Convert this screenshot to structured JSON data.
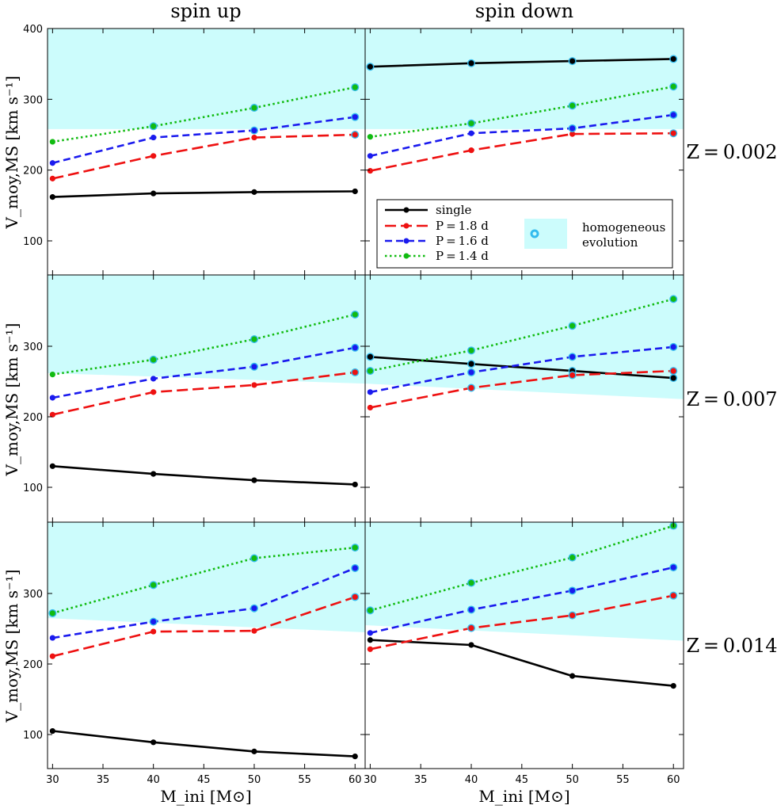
{
  "figure": {
    "col_titles": [
      "spin up",
      "spin down"
    ],
    "row_labels": [
      "Z = 0.002",
      "Z = 0.007",
      "Z = 0.014"
    ],
    "xlabel": "M_ini [M⊙]",
    "ylabel": "V_moy,MS [km s⁻¹]"
  },
  "legend": {
    "entries": [
      "single",
      "P = 1.8 d",
      "P = 1.6 d",
      "P = 1.4 d"
    ],
    "homogeneous": [
      "homogeneous",
      "evolution"
    ]
  },
  "colors": {
    "single": "#000000",
    "p18": "#ee1111",
    "p16": "#1a1aee",
    "p14": "#11bb11",
    "homogeneous_region": "#ccfcfc",
    "homogeneous_marker": "#33bbee"
  },
  "chart_data": {
    "type": "line",
    "x": [
      30,
      40,
      50,
      60
    ],
    "xticks": [
      30,
      35,
      40,
      45,
      50,
      55,
      60
    ],
    "xlim": [
      29.5,
      61
    ],
    "ylim_top_row": [
      50,
      400
    ],
    "ylim_other_rows": [
      50,
      400
    ],
    "yticks_top_row": [
      100,
      200,
      300,
      400
    ],
    "yticks_other_rows": [
      100,
      200,
      300
    ],
    "panels": [
      {
        "row": 0,
        "col": 0,
        "homogeneous_threshold": [
          258,
          258
        ],
        "series": [
          {
            "name": "single",
            "values": [
              162,
              167,
              169,
              170
            ],
            "homogeneous": [
              false,
              false,
              false,
              false
            ]
          },
          {
            "name": "P = 1.8 d",
            "values": [
              188,
              220,
              246,
              250
            ],
            "homogeneous": [
              false,
              false,
              false,
              true
            ]
          },
          {
            "name": "P = 1.6 d",
            "values": [
              210,
              246,
              256,
              275
            ],
            "homogeneous": [
              false,
              false,
              true,
              true
            ]
          },
          {
            "name": "P = 1.4 d",
            "values": [
              240,
              262,
              288,
              317
            ],
            "homogeneous": [
              false,
              true,
              true,
              true
            ]
          }
        ]
      },
      {
        "row": 0,
        "col": 1,
        "homogeneous_threshold": [
          258,
          258
        ],
        "series": [
          {
            "name": "single",
            "values": [
              346,
              351,
              354,
              357
            ],
            "homogeneous": [
              true,
              true,
              true,
              true
            ]
          },
          {
            "name": "P = 1.8 d",
            "values": [
              199,
              228,
              251,
              252
            ],
            "homogeneous": [
              false,
              false,
              false,
              true
            ]
          },
          {
            "name": "P = 1.6 d",
            "values": [
              220,
              252,
              259,
              278
            ],
            "homogeneous": [
              false,
              false,
              true,
              true
            ]
          },
          {
            "name": "P = 1.4 d",
            "values": [
              247,
              266,
              291,
              318
            ],
            "homogeneous": [
              false,
              true,
              true,
              true
            ]
          }
        ]
      },
      {
        "row": 1,
        "col": 0,
        "homogeneous_threshold": [
          262,
          247
        ],
        "series": [
          {
            "name": "single",
            "values": [
              130,
              119,
              110,
              104
            ],
            "homogeneous": [
              false,
              false,
              false,
              false
            ]
          },
          {
            "name": "P = 1.8 d",
            "values": [
              203,
              235,
              245,
              263
            ],
            "homogeneous": [
              false,
              false,
              false,
              true
            ]
          },
          {
            "name": "P = 1.6 d",
            "values": [
              227,
              254,
              271,
              298
            ],
            "homogeneous": [
              false,
              false,
              true,
              true
            ]
          },
          {
            "name": "P = 1.4 d",
            "values": [
              260,
              281,
              310,
              345
            ],
            "homogeneous": [
              false,
              true,
              true,
              true
            ]
          }
        ]
      },
      {
        "row": 1,
        "col": 1,
        "homogeneous_threshold": [
          247,
          225
        ],
        "series": [
          {
            "name": "single",
            "values": [
              285,
              275,
              265,
              255
            ],
            "homogeneous": [
              true,
              true,
              true,
              true
            ]
          },
          {
            "name": "P = 1.8 d",
            "values": [
              213,
              241,
              259,
              265
            ],
            "homogeneous": [
              false,
              true,
              true,
              true
            ]
          },
          {
            "name": "P = 1.6 d",
            "values": [
              235,
              263,
              285,
              299
            ],
            "homogeneous": [
              false,
              true,
              true,
              true
            ]
          },
          {
            "name": "P = 1.4 d",
            "values": [
              265,
              294,
              329,
              367
            ],
            "homogeneous": [
              true,
              true,
              true,
              true
            ]
          }
        ]
      },
      {
        "row": 2,
        "col": 0,
        "homogeneous_threshold": [
          265,
          245
        ],
        "series": [
          {
            "name": "single",
            "values": [
              105,
              89,
              76,
              69
            ],
            "homogeneous": [
              false,
              false,
              false,
              false
            ]
          },
          {
            "name": "P = 1.8 d",
            "values": [
              211,
              246,
              247,
              295
            ],
            "homogeneous": [
              false,
              false,
              false,
              true
            ]
          },
          {
            "name": "P = 1.6 d",
            "values": [
              237,
              260,
              279,
              336
            ],
            "homogeneous": [
              false,
              true,
              true,
              true
            ]
          },
          {
            "name": "P = 1.4 d",
            "values": [
              272,
              312,
              350,
              365
            ],
            "homogeneous": [
              true,
              true,
              true,
              true
            ]
          }
        ]
      },
      {
        "row": 2,
        "col": 1,
        "homogeneous_threshold": [
          255,
          233
        ],
        "series": [
          {
            "name": "single",
            "values": [
              234,
              227,
              183,
              169
            ],
            "homogeneous": [
              false,
              false,
              false,
              false
            ]
          },
          {
            "name": "P = 1.8 d",
            "values": [
              221,
              251,
              269,
              297
            ],
            "homogeneous": [
              false,
              true,
              true,
              true
            ]
          },
          {
            "name": "P = 1.6 d",
            "values": [
              244,
              277,
              304,
              337
            ],
            "homogeneous": [
              false,
              true,
              true,
              true
            ]
          },
          {
            "name": "P = 1.4 d",
            "values": [
              276,
              315,
              351,
              396
            ],
            "homogeneous": [
              true,
              true,
              true,
              true
            ]
          }
        ]
      }
    ]
  }
}
